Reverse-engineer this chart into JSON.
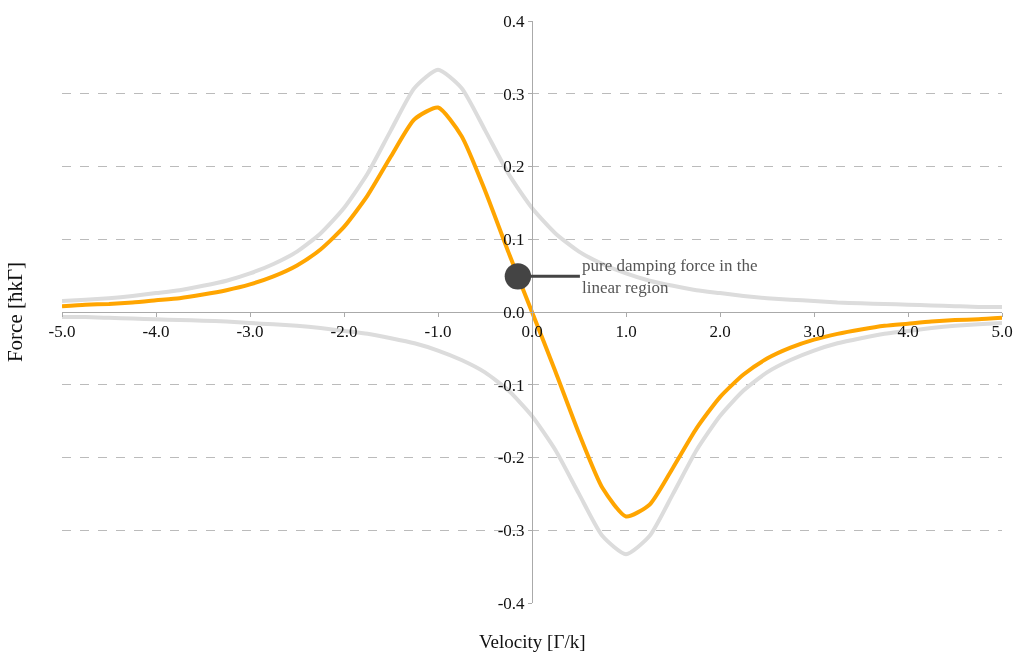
{
  "chart_data": {
    "type": "line",
    "xlabel": "Velocity [Γ/k]",
    "ylabel": "Force [ħkΓ]",
    "x": [
      -5,
      -4.75,
      -4.5,
      -4.25,
      -4,
      -3.75,
      -3.5,
      -3.25,
      -3,
      -2.75,
      -2.5,
      -2.25,
      -2,
      -1.75,
      -1.5,
      -1.25,
      -1,
      -0.75,
      -0.5,
      -0.25,
      0,
      0.25,
      0.5,
      0.75,
      1,
      1.25,
      1.5,
      1.75,
      2,
      2.25,
      2.5,
      2.75,
      3,
      3.25,
      3.5,
      3.75,
      4,
      4.25,
      4.5,
      4.75,
      5
    ],
    "series": [
      {
        "color": "#dcdcdc",
        "values": [
          0.015,
          0.017,
          0.019,
          0.022,
          0.026,
          0.03,
          0.036,
          0.043,
          0.053,
          0.066,
          0.083,
          0.108,
          0.143,
          0.19,
          0.25,
          0.308,
          0.333,
          0.308,
          0.25,
          0.19,
          0.143,
          0.108,
          0.083,
          0.066,
          0.053,
          0.043,
          0.036,
          0.03,
          0.026,
          0.022,
          0.019,
          0.017,
          0.015,
          0.013,
          0.012,
          0.011,
          0.01,
          0.009,
          0.008,
          0.007,
          0.007
        ]
      },
      {
        "color": "#dcdcdc",
        "values": [
          -0.007,
          -0.007,
          -0.008,
          -0.009,
          -0.01,
          -0.011,
          -0.012,
          -0.013,
          -0.015,
          -0.017,
          -0.019,
          -0.022,
          -0.026,
          -0.03,
          -0.036,
          -0.043,
          -0.053,
          -0.066,
          -0.083,
          -0.108,
          -0.143,
          -0.19,
          -0.25,
          -0.308,
          -0.333,
          -0.308,
          -0.25,
          -0.19,
          -0.143,
          -0.108,
          -0.083,
          -0.066,
          -0.053,
          -0.043,
          -0.036,
          -0.03,
          -0.026,
          -0.022,
          -0.019,
          -0.017,
          -0.015
        ]
      },
      {
        "color": "#ffa500",
        "values": [
          0.008,
          0.01,
          0.011,
          0.013,
          0.016,
          0.019,
          0.024,
          0.03,
          0.038,
          0.049,
          0.064,
          0.086,
          0.117,
          0.16,
          0.214,
          0.265,
          0.281,
          0.242,
          0.167,
          0.082,
          0,
          -0.082,
          -0.167,
          -0.242,
          -0.281,
          -0.265,
          -0.214,
          -0.16,
          -0.117,
          -0.086,
          -0.064,
          -0.049,
          -0.038,
          -0.03,
          -0.024,
          -0.019,
          -0.016,
          -0.013,
          -0.011,
          -0.01,
          -0.008
        ]
      }
    ],
    "annotations": [
      {
        "text": "pure damping force in the linear region",
        "x": -0.15,
        "y": 0.049
      }
    ],
    "xlim": [
      -5,
      5
    ],
    "xticks": [
      {
        "value": -5,
        "label": "-5.0"
      },
      {
        "value": -4,
        "label": "-4.0"
      },
      {
        "value": -3,
        "label": "-3.0"
      },
      {
        "value": -2,
        "label": "-2.0"
      },
      {
        "value": -1,
        "label": "-1.0"
      },
      {
        "value": 0,
        "label": "0.0"
      },
      {
        "value": 1,
        "label": "1.0"
      },
      {
        "value": 2,
        "label": "2.0"
      },
      {
        "value": 3,
        "label": "3.0"
      },
      {
        "value": 4,
        "label": "4.0"
      },
      {
        "value": 5,
        "label": "5.0"
      }
    ],
    "ylim": [
      -0.4,
      0.4
    ],
    "yticks": [
      -0.4,
      -0.3,
      -0.2,
      -0.1,
      {
        "value": 0,
        "label": "0.0"
      },
      0.1,
      0.2,
      0.3,
      0.4
    ],
    "grid": "y",
    "marker": "none",
    "line_style": "solid"
  }
}
